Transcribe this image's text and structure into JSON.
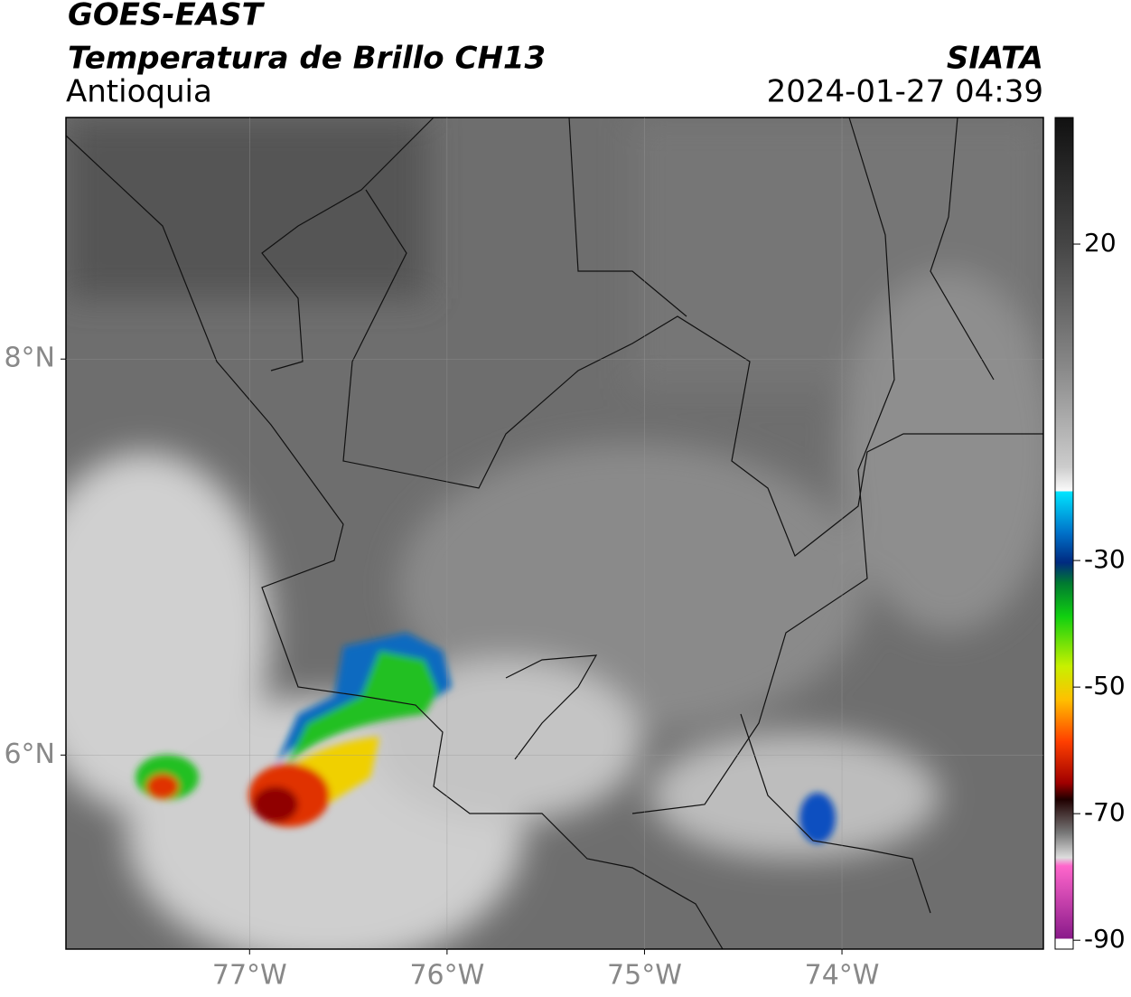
{
  "header": {
    "title": "GOES-EAST",
    "subtitle": "Temperatura de Brillo CH13",
    "region": "Antioquia",
    "agency": "SIATA",
    "datetime": "2024-01-27 04:39"
  },
  "map": {
    "xlim": [
      -77.93,
      -72.98
    ],
    "ylim": [
      5.02,
      9.22
    ],
    "xticks": [
      {
        "value": -77,
        "label": "77°W"
      },
      {
        "value": -76,
        "label": "76°W"
      },
      {
        "value": -75,
        "label": "75°W"
      },
      {
        "value": -74,
        "label": "74°W"
      }
    ],
    "yticks": [
      {
        "value": 6,
        "label": "6°N"
      },
      {
        "value": 8,
        "label": "8°N"
      }
    ],
    "grid": true
  },
  "colorbar": {
    "clim": [
      -91.4,
      40
    ],
    "ticks": [
      20,
      -30,
      -50,
      -70,
      -90
    ]
  }
}
